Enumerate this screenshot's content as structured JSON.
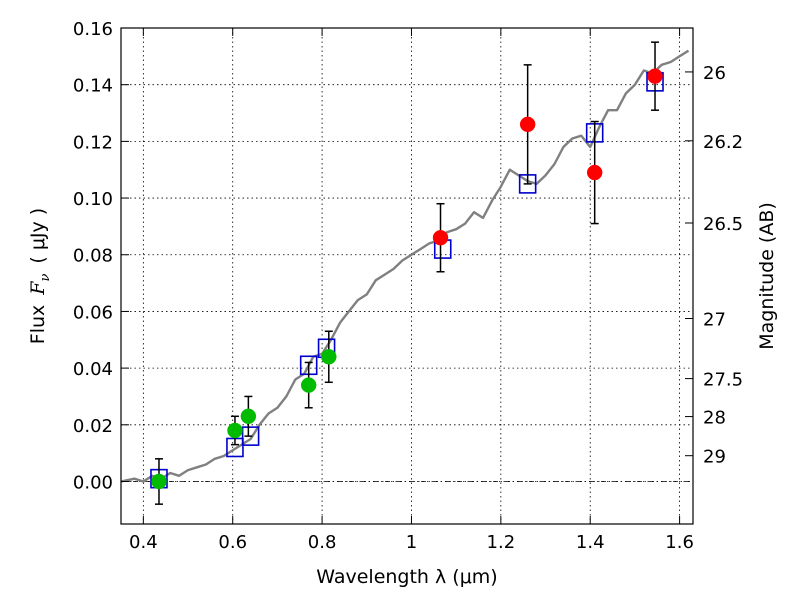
{
  "chart_data": {
    "type": "scatter",
    "xlabel": "Wavelength  λ (μm)",
    "ylabel": "Flux  F_ν  ( μJy )",
    "ylabel_parts": {
      "prefix": "Flux",
      "symbol": "F",
      "subscript": "ν",
      "unit_open": "(",
      "unit": "μJy",
      "unit_close": ")"
    },
    "y2label": "Magnitude (AB)",
    "xlim": [
      0.35,
      1.63
    ],
    "ylim": [
      -0.015,
      0.16
    ],
    "x_ticks": [
      0.4,
      0.6,
      0.8,
      1.0,
      1.2,
      1.4,
      1.6
    ],
    "x_tick_labels": [
      "0.4",
      "0.6",
      "0.8",
      "1",
      "1.2",
      "1.4",
      "1.6"
    ],
    "y_ticks": [
      0.0,
      0.02,
      0.04,
      0.06,
      0.08,
      0.1,
      0.12,
      0.14,
      0.16
    ],
    "y_tick_labels": [
      "0.00",
      "0.02",
      "0.04",
      "0.06",
      "0.08",
      "0.10",
      "0.12",
      "0.14",
      "0.16"
    ],
    "y2_ticks": [
      {
        "label": "26",
        "flux": 0.1445
      },
      {
        "label": "26.2",
        "flux": 0.1202
      },
      {
        "label": "26.5",
        "flux": 0.0912
      },
      {
        "label": "27",
        "flux": 0.0575
      },
      {
        "label": "27.5",
        "flux": 0.0363
      },
      {
        "label": "28",
        "flux": 0.0229
      },
      {
        "label": "29",
        "flux": 0.0091
      }
    ],
    "grid": true,
    "zero_line": true,
    "series": [
      {
        "kind": "line",
        "color": "#808080",
        "x": [
          0.35,
          0.38,
          0.4,
          0.42,
          0.44,
          0.46,
          0.48,
          0.5,
          0.52,
          0.54,
          0.56,
          0.58,
          0.6,
          0.62,
          0.64,
          0.66,
          0.68,
          0.7,
          0.72,
          0.74,
          0.76,
          0.78,
          0.8,
          0.82,
          0.84,
          0.86,
          0.88,
          0.9,
          0.92,
          0.94,
          0.96,
          0.98,
          1.0,
          1.02,
          1.04,
          1.06,
          1.08,
          1.1,
          1.12,
          1.14,
          1.16,
          1.18,
          1.2,
          1.22,
          1.24,
          1.26,
          1.28,
          1.3,
          1.32,
          1.34,
          1.36,
          1.38,
          1.4,
          1.42,
          1.44,
          1.46,
          1.48,
          1.5,
          1.52,
          1.54,
          1.56,
          1.58,
          1.6,
          1.62
        ],
        "y": [
          0.0,
          0.001,
          0.0,
          0.002,
          0.001,
          0.003,
          0.002,
          0.004,
          0.005,
          0.006,
          0.008,
          0.009,
          0.011,
          0.013,
          0.015,
          0.02,
          0.024,
          0.026,
          0.03,
          0.036,
          0.038,
          0.044,
          0.045,
          0.05,
          0.056,
          0.06,
          0.064,
          0.066,
          0.071,
          0.073,
          0.075,
          0.078,
          0.08,
          0.082,
          0.084,
          0.085,
          0.088,
          0.089,
          0.091,
          0.095,
          0.093,
          0.099,
          0.104,
          0.11,
          0.108,
          0.106,
          0.105,
          0.108,
          0.112,
          0.118,
          0.121,
          0.122,
          0.118,
          0.125,
          0.131,
          0.131,
          0.137,
          0.14,
          0.145,
          0.144,
          0.147,
          0.148,
          0.15,
          0.152
        ]
      },
      {
        "kind": "open-square",
        "color": "#0000cc",
        "x": [
          0.435,
          0.605,
          0.64,
          0.77,
          0.81,
          1.07,
          1.26,
          1.41,
          1.545
        ],
        "y": [
          0.001,
          0.012,
          0.016,
          0.041,
          0.047,
          0.082,
          0.105,
          0.123,
          0.141
        ]
      },
      {
        "kind": "filled-circle",
        "color": "#00bb00",
        "x": [
          0.435,
          0.605,
          0.635,
          0.77,
          0.815
        ],
        "y": [
          0.0,
          0.018,
          0.023,
          0.034,
          0.044
        ],
        "yerr": [
          0.008,
          0.005,
          0.007,
          0.008,
          0.009
        ]
      },
      {
        "kind": "filled-circle",
        "color": "#ff0000",
        "x": [
          1.065,
          1.26,
          1.41,
          1.545
        ],
        "y": [
          0.086,
          0.126,
          0.109,
          0.143
        ],
        "yerr": [
          0.012,
          0.021,
          0.018,
          0.012
        ]
      }
    ]
  }
}
